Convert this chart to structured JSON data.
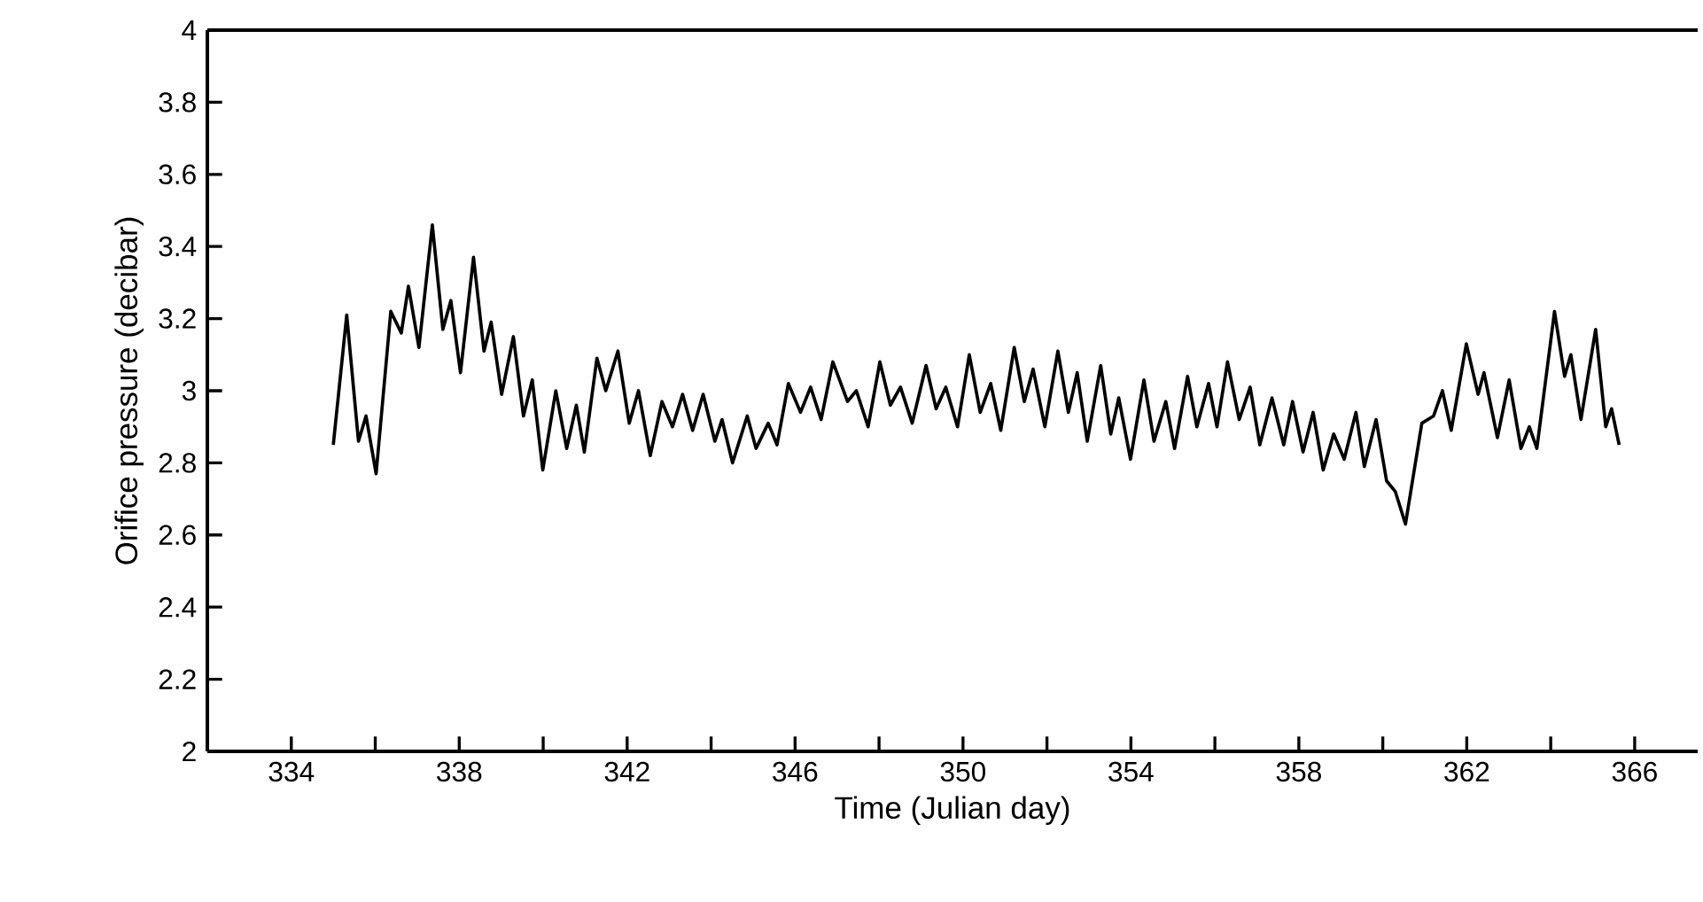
{
  "chart_data": {
    "type": "line",
    "xlabel": "Time (Julian day)",
    "ylabel": "Orifice pressure (decibar)",
    "color": "#000000",
    "xlim": [
      332,
      367.5
    ],
    "ylim": [
      2,
      4
    ],
    "xticks": [
      334,
      {
        "value": 336,
        "label": null
      },
      338,
      {
        "value": 340,
        "label": null
      },
      342,
      {
        "value": 344,
        "label": null
      },
      346,
      {
        "value": 348,
        "label": null
      },
      350,
      {
        "value": 352,
        "label": null
      },
      354,
      {
        "value": 356,
        "label": null
      },
      358,
      {
        "value": 360,
        "label": null
      },
      362,
      {
        "value": 364,
        "label": null
      },
      366
    ],
    "yticks": [
      2,
      2.2,
      2.4,
      2.6,
      2.8,
      3,
      3.2,
      3.4,
      3.6,
      3.8,
      4
    ],
    "x": [
      335.0,
      335.32,
      335.6,
      335.78,
      336.02,
      336.37,
      336.62,
      336.79,
      337.04,
      337.36,
      337.61,
      337.8,
      338.03,
      338.34,
      338.59,
      338.76,
      339.01,
      339.29,
      339.53,
      339.74,
      339.99,
      340.3,
      340.56,
      340.79,
      340.98,
      341.28,
      341.49,
      341.78,
      342.05,
      342.27,
      342.55,
      342.83,
      343.08,
      343.32,
      343.56,
      343.81,
      344.09,
      344.26,
      344.51,
      344.86,
      345.07,
      345.36,
      345.57,
      345.84,
      346.13,
      346.37,
      346.62,
      346.9,
      347.25,
      347.46,
      347.74,
      348.02,
      348.27,
      348.51,
      348.79,
      349.12,
      349.36,
      349.59,
      349.87,
      350.15,
      350.41,
      350.66,
      350.9,
      351.22,
      351.46,
      351.67,
      351.95,
      352.26,
      352.51,
      352.72,
      352.96,
      353.28,
      353.52,
      353.71,
      353.99,
      354.31,
      354.55,
      354.83,
      355.04,
      355.35,
      355.57,
      355.85,
      356.05,
      356.3,
      356.58,
      356.84,
      357.07,
      357.36,
      357.64,
      357.85,
      358.1,
      358.34,
      358.58,
      358.83,
      359.08,
      359.36,
      359.56,
      359.84,
      360.09,
      360.3,
      360.54,
      360.93,
      361.21,
      361.42,
      361.63,
      361.99,
      362.27,
      362.41,
      362.73,
      363.01,
      363.29,
      363.49,
      363.67,
      364.09,
      364.33,
      364.48,
      364.72,
      365.07,
      365.31,
      365.45,
      365.63
    ],
    "values": [
      2.85,
      3.21,
      2.86,
      2.93,
      2.77,
      3.22,
      3.16,
      3.29,
      3.12,
      3.46,
      3.17,
      3.25,
      3.05,
      3.37,
      3.11,
      3.19,
      2.99,
      3.15,
      2.93,
      3.03,
      2.78,
      3.0,
      2.84,
      2.96,
      2.83,
      3.09,
      3.0,
      3.11,
      2.91,
      3.0,
      2.82,
      2.97,
      2.9,
      2.99,
      2.89,
      2.99,
      2.86,
      2.92,
      2.8,
      2.93,
      2.84,
      2.91,
      2.85,
      3.02,
      2.94,
      3.01,
      2.92,
      3.08,
      2.97,
      3.0,
      2.9,
      3.08,
      2.96,
      3.01,
      2.91,
      3.07,
      2.95,
      3.01,
      2.9,
      3.1,
      2.94,
      3.02,
      2.89,
      3.12,
      2.97,
      3.06,
      2.9,
      3.11,
      2.94,
      3.05,
      2.86,
      3.07,
      2.88,
      2.98,
      2.81,
      3.03,
      2.86,
      2.97,
      2.84,
      3.04,
      2.9,
      3.02,
      2.9,
      3.08,
      2.92,
      3.01,
      2.85,
      2.98,
      2.85,
      2.97,
      2.83,
      2.94,
      2.78,
      2.88,
      2.81,
      2.94,
      2.79,
      2.92,
      2.75,
      2.72,
      2.63,
      2.91,
      2.93,
      3.0,
      2.89,
      3.13,
      2.99,
      3.05,
      2.87,
      3.03,
      2.84,
      2.9,
      2.84,
      3.22,
      3.04,
      3.1,
      2.92,
      3.17,
      2.9,
      2.95,
      2.85
    ]
  }
}
